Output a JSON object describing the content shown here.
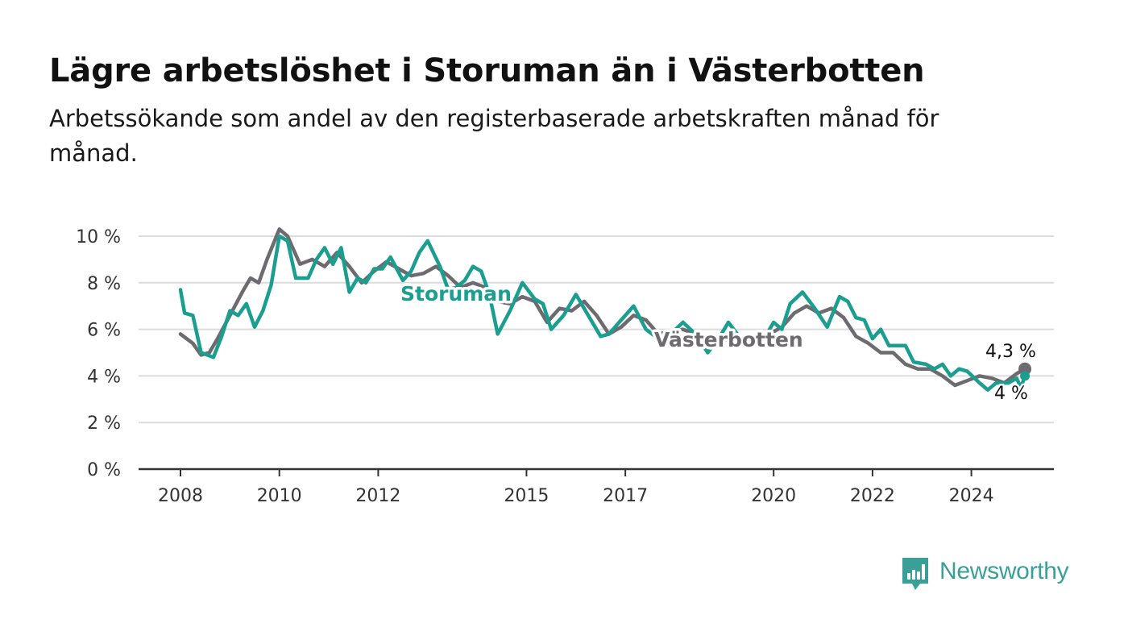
{
  "title": "Lägre arbetslöshet i Storuman än i Västerbotten",
  "subtitle": "Arbetssökande som andel av den registerbaserade arbetskraften månad för månad.",
  "brand": {
    "name": "Newsworthy",
    "color": "#3a9f97",
    "icon": "newsworthy-logo-icon"
  },
  "chart_data": {
    "type": "line",
    "ylim": [
      0,
      10
    ],
    "yticks": [
      "0 %",
      "2 %",
      "4 %",
      "6 %",
      "8 %",
      "10 %"
    ],
    "xticks": [
      "2008",
      "2010",
      "2012",
      "2015",
      "2017",
      "2020",
      "2022",
      "2024"
    ],
    "grid": true,
    "legend": "inline labels",
    "end_labels": {
      "Västerbotten": "4,3 %",
      "Storuman": "4 %"
    },
    "series": [
      {
        "name": "Västerbotten",
        "color": "#6d6b70",
        "points": [
          [
            "2008-01",
            5.8
          ],
          [
            "2008-04",
            5.4
          ],
          [
            "2008-06",
            4.9
          ],
          [
            "2008-08",
            5.0
          ],
          [
            "2008-10",
            5.6
          ],
          [
            "2009-01",
            6.6
          ],
          [
            "2009-04",
            7.6
          ],
          [
            "2009-06",
            8.2
          ],
          [
            "2009-08",
            8.0
          ],
          [
            "2009-10",
            9.0
          ],
          [
            "2010-01",
            10.3
          ],
          [
            "2010-03",
            10.0
          ],
          [
            "2010-06",
            8.8
          ],
          [
            "2010-09",
            9.0
          ],
          [
            "2010-12",
            8.7
          ],
          [
            "2011-03",
            9.3
          ],
          [
            "2011-06",
            8.7
          ],
          [
            "2011-09",
            8.0
          ],
          [
            "2011-12",
            8.5
          ],
          [
            "2012-03",
            8.9
          ],
          [
            "2012-06",
            8.6
          ],
          [
            "2012-09",
            8.3
          ],
          [
            "2012-12",
            8.4
          ],
          [
            "2013-03",
            8.7
          ],
          [
            "2013-06",
            8.3
          ],
          [
            "2013-09",
            7.8
          ],
          [
            "2013-12",
            8.0
          ],
          [
            "2014-03",
            7.8
          ],
          [
            "2014-06",
            7.2
          ],
          [
            "2014-09",
            7.1
          ],
          [
            "2014-12",
            7.4
          ],
          [
            "2015-03",
            7.2
          ],
          [
            "2015-06",
            6.3
          ],
          [
            "2015-09",
            6.9
          ],
          [
            "2015-12",
            6.8
          ],
          [
            "2016-03",
            7.2
          ],
          [
            "2016-06",
            6.6
          ],
          [
            "2016-09",
            5.8
          ],
          [
            "2016-12",
            6.1
          ],
          [
            "2017-03",
            6.6
          ],
          [
            "2017-06",
            6.4
          ],
          [
            "2017-09",
            5.8
          ],
          [
            "2017-12",
            5.9
          ],
          [
            "2018-03",
            6.0
          ],
          [
            "2018-06",
            5.8
          ],
          [
            "2018-09",
            5.4
          ],
          [
            "2018-12",
            5.6
          ],
          [
            "2019-03",
            5.5
          ],
          [
            "2019-06",
            5.3
          ],
          [
            "2019-09",
            5.6
          ],
          [
            "2019-12",
            5.8
          ],
          [
            "2020-03",
            6.1
          ],
          [
            "2020-06",
            6.7
          ],
          [
            "2020-09",
            7.0
          ],
          [
            "2020-12",
            6.7
          ],
          [
            "2021-03",
            6.9
          ],
          [
            "2021-06",
            6.5
          ],
          [
            "2021-09",
            5.7
          ],
          [
            "2021-12",
            5.4
          ],
          [
            "2022-03",
            5.0
          ],
          [
            "2022-06",
            5.0
          ],
          [
            "2022-09",
            4.5
          ],
          [
            "2022-12",
            4.3
          ],
          [
            "2023-03",
            4.3
          ],
          [
            "2023-06",
            4.0
          ],
          [
            "2023-09",
            3.6
          ],
          [
            "2023-12",
            3.8
          ],
          [
            "2024-03",
            4.0
          ],
          [
            "2024-06",
            3.9
          ],
          [
            "2024-09",
            3.7
          ],
          [
            "2024-12",
            4.1
          ],
          [
            "2025-02",
            4.3
          ]
        ]
      },
      {
        "name": "Storuman",
        "color": "#1a9e90",
        "points": [
          [
            "2008-01",
            7.7
          ],
          [
            "2008-02",
            6.7
          ],
          [
            "2008-04",
            6.6
          ],
          [
            "2008-06",
            5.0
          ],
          [
            "2008-09",
            4.8
          ],
          [
            "2008-11",
            5.7
          ],
          [
            "2009-01",
            6.8
          ],
          [
            "2009-03",
            6.6
          ],
          [
            "2009-05",
            7.1
          ],
          [
            "2009-07",
            6.1
          ],
          [
            "2009-09",
            6.8
          ],
          [
            "2009-11",
            7.9
          ],
          [
            "2010-01",
            10.0
          ],
          [
            "2010-03",
            9.8
          ],
          [
            "2010-05",
            8.2
          ],
          [
            "2010-08",
            8.2
          ],
          [
            "2010-10",
            9.0
          ],
          [
            "2010-12",
            9.5
          ],
          [
            "2011-02",
            8.8
          ],
          [
            "2011-04",
            9.5
          ],
          [
            "2011-06",
            7.6
          ],
          [
            "2011-08",
            8.2
          ],
          [
            "2011-10",
            8.0
          ],
          [
            "2011-12",
            8.6
          ],
          [
            "2012-02",
            8.6
          ],
          [
            "2012-04",
            9.1
          ],
          [
            "2012-07",
            8.1
          ],
          [
            "2012-09",
            8.5
          ],
          [
            "2012-11",
            9.3
          ],
          [
            "2013-01",
            9.8
          ],
          [
            "2013-04",
            8.7
          ],
          [
            "2013-06",
            7.7
          ],
          [
            "2013-08",
            7.8
          ],
          [
            "2013-10",
            8.1
          ],
          [
            "2013-12",
            8.7
          ],
          [
            "2014-02",
            8.5
          ],
          [
            "2014-04",
            7.5
          ],
          [
            "2014-06",
            5.8
          ],
          [
            "2014-09",
            6.8
          ],
          [
            "2014-12",
            8.0
          ],
          [
            "2015-03",
            7.3
          ],
          [
            "2015-05",
            7.1
          ],
          [
            "2015-07",
            6.0
          ],
          [
            "2015-10",
            6.6
          ],
          [
            "2016-01",
            7.5
          ],
          [
            "2016-04",
            6.6
          ],
          [
            "2016-07",
            5.7
          ],
          [
            "2016-09",
            5.8
          ],
          [
            "2016-12",
            6.4
          ],
          [
            "2017-03",
            7.0
          ],
          [
            "2017-06",
            6.0
          ],
          [
            "2017-09",
            5.6
          ],
          [
            "2017-12",
            5.8
          ],
          [
            "2018-03",
            6.3
          ],
          [
            "2018-06",
            5.8
          ],
          [
            "2018-09",
            5.0
          ],
          [
            "2018-12",
            5.7
          ],
          [
            "2019-02",
            6.3
          ],
          [
            "2019-05",
            5.6
          ],
          [
            "2019-08",
            5.5
          ],
          [
            "2019-11",
            5.7
          ],
          [
            "2020-01",
            6.3
          ],
          [
            "2020-03",
            6.0
          ],
          [
            "2020-05",
            7.1
          ],
          [
            "2020-08",
            7.6
          ],
          [
            "2020-11",
            6.9
          ],
          [
            "2021-02",
            6.1
          ],
          [
            "2021-05",
            7.4
          ],
          [
            "2021-07",
            7.2
          ],
          [
            "2021-09",
            6.5
          ],
          [
            "2021-11",
            6.4
          ],
          [
            "2022-01",
            5.6
          ],
          [
            "2022-03",
            6.0
          ],
          [
            "2022-05",
            5.3
          ],
          [
            "2022-09",
            5.3
          ],
          [
            "2022-11",
            4.6
          ],
          [
            "2023-02",
            4.5
          ],
          [
            "2023-04",
            4.3
          ],
          [
            "2023-06",
            4.5
          ],
          [
            "2023-08",
            4.0
          ],
          [
            "2023-10",
            4.3
          ],
          [
            "2023-12",
            4.2
          ],
          [
            "2024-03",
            3.7
          ],
          [
            "2024-05",
            3.4
          ],
          [
            "2024-07",
            3.7
          ],
          [
            "2024-10",
            3.7
          ],
          [
            "2024-12",
            3.9
          ],
          [
            "2025-01",
            3.5
          ],
          [
            "2025-02",
            4.0
          ]
        ]
      }
    ]
  }
}
